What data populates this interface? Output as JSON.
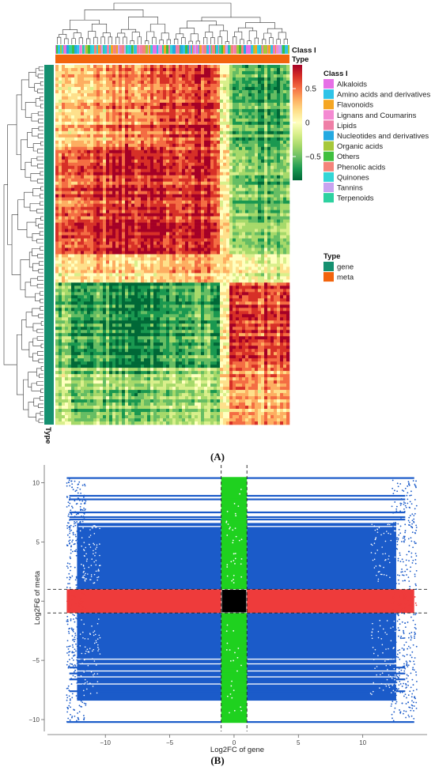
{
  "chart_data": [
    {
      "panel_label": "(A)",
      "type": "heatmap",
      "scale_legend": {
        "ticks": [
          0.5,
          0,
          -0.5
        ],
        "tick_labels": [
          "0.5",
          "0",
          "−0.5"
        ],
        "colors": [
          "#a50026",
          "#d73027",
          "#f46d43",
          "#fdae61",
          "#fee08b",
          "#ffffbf",
          "#d9ef8b",
          "#a6d96a",
          "#66bd63",
          "#1a9850",
          "#006837"
        ]
      },
      "class_legend": {
        "title": "Class I",
        "entries": [
          {
            "label": "Alkaloids",
            "color": "#e66fe6"
          },
          {
            "label": "Amino acids and derivatives",
            "color": "#2fc3e8"
          },
          {
            "label": "Flavonoids",
            "color": "#f5a623"
          },
          {
            "label": "Lignans and Coumarins",
            "color": "#f48ad2"
          },
          {
            "label": "Lipids",
            "color": "#ef7fa6"
          },
          {
            "label": "Nucleotides and derivatives",
            "color": "#24a9e1"
          },
          {
            "label": "Organic acids",
            "color": "#a6c83a"
          },
          {
            "label": "Others",
            "color": "#3fbf3f"
          },
          {
            "label": "Phenolic acids",
            "color": "#f4847a"
          },
          {
            "label": "Quinones",
            "color": "#33d6d6"
          },
          {
            "label": "Tannins",
            "color": "#c8a3f0"
          },
          {
            "label": "Terpenoids",
            "color": "#2ed1a0"
          }
        ]
      },
      "type_legend": {
        "title": "Type",
        "entries": [
          {
            "label": "gene",
            "color": "#159070"
          },
          {
            "label": "meta",
            "color": "#f2640d"
          }
        ]
      },
      "annotation_labels": {
        "class_bar": "Class I",
        "type_bar": "Type",
        "row_bar": "Type"
      }
    },
    {
      "panel_label": "(B)",
      "type": "scatter",
      "xlabel": "Log2FC of gene",
      "ylabel": "Log2FC of meta",
      "xlim": [
        -14.5,
        15
      ],
      "ylim": [
        -11,
        11.5
      ],
      "x_ticks": [
        -10,
        -5,
        0,
        5,
        10
      ],
      "x_tick_labels": [
        "−10",
        "−5",
        "0",
        "5",
        "10"
      ],
      "y_ticks": [
        -10,
        -5,
        0,
        5,
        10
      ],
      "y_tick_labels": [
        "−10",
        "−5",
        "0",
        "5",
        "10"
      ],
      "thresholds": {
        "x": [
          -1,
          1
        ],
        "y": [
          -1,
          1
        ]
      },
      "gene_range": [
        -13,
        14
      ],
      "meta_range": [
        -10.2,
        10.4
      ],
      "grid": false,
      "groups": [
        {
          "region": "|gene| > 1 and |meta| > 1",
          "color": "#1b5bc9"
        },
        {
          "region": "|gene| > 1 and |meta| ≤ 1",
          "color": "#ee3b3b"
        },
        {
          "region": "|gene| ≤ 1 and |meta| > 1",
          "color": "#1fd11f"
        },
        {
          "region": "|gene| ≤ 1 and |meta| ≤ 1",
          "color": "#000000"
        }
      ]
    }
  ]
}
